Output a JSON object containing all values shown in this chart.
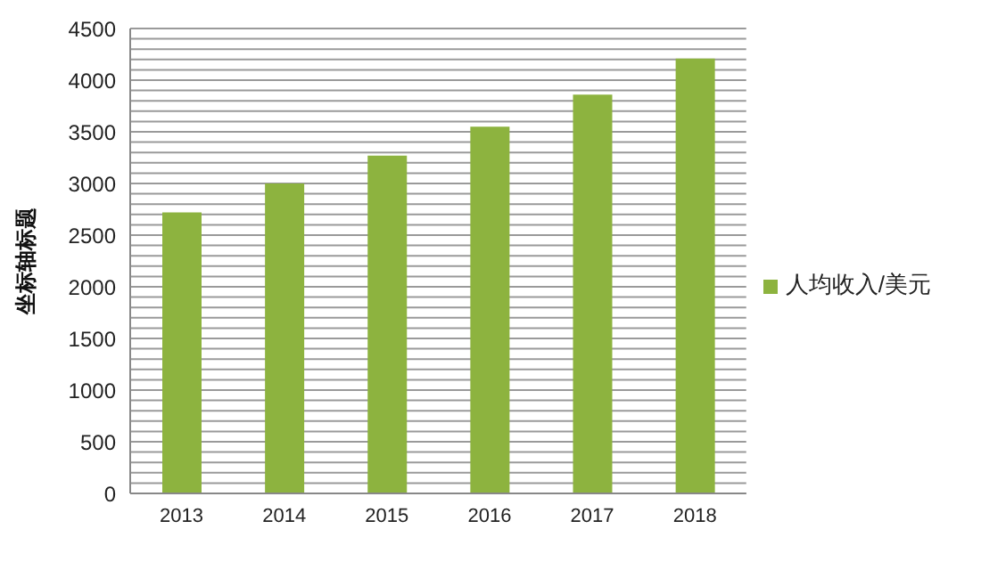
{
  "chart_data": {
    "type": "bar",
    "ylabel": "坐标轴标题",
    "categories": [
      "2013",
      "2014",
      "2015",
      "2016",
      "2017",
      "2018"
    ],
    "series": [
      {
        "name": "人均收入/美元",
        "color": "#8db33f",
        "values": [
          2720,
          3000,
          3270,
          3550,
          3860,
          4210
        ]
      }
    ],
    "ylim": [
      0,
      4500
    ],
    "yticks": [
      0,
      {
        "value": 100,
        "label": null
      },
      {
        "value": 200,
        "label": null
      },
      {
        "value": 300,
        "label": null
      },
      {
        "value": 400,
        "label": null
      },
      500,
      {
        "value": 600,
        "label": null
      },
      {
        "value": 700,
        "label": null
      },
      {
        "value": 800,
        "label": null
      },
      {
        "value": 900,
        "label": null
      },
      1000,
      {
        "value": 1100,
        "label": null
      },
      {
        "value": 1200,
        "label": null
      },
      {
        "value": 1300,
        "label": null
      },
      {
        "value": 1400,
        "label": null
      },
      1500,
      {
        "value": 1600,
        "label": null
      },
      {
        "value": 1700,
        "label": null
      },
      {
        "value": 1800,
        "label": null
      },
      {
        "value": 1900,
        "label": null
      },
      2000,
      {
        "value": 2100,
        "label": null
      },
      {
        "value": 2200,
        "label": null
      },
      {
        "value": 2300,
        "label": null
      },
      {
        "value": 2400,
        "label": null
      },
      2500,
      {
        "value": 2600,
        "label": null
      },
      {
        "value": 2700,
        "label": null
      },
      {
        "value": 2800,
        "label": null
      },
      {
        "value": 2900,
        "label": null
      },
      3000,
      {
        "value": 3100,
        "label": null
      },
      {
        "value": 3200,
        "label": null
      },
      {
        "value": 3300,
        "label": null
      },
      {
        "value": 3400,
        "label": null
      },
      3500,
      {
        "value": 3600,
        "label": null
      },
      {
        "value": 3700,
        "label": null
      },
      {
        "value": 3800,
        "label": null
      },
      {
        "value": 3900,
        "label": null
      },
      4000,
      {
        "value": 4100,
        "label": null
      },
      {
        "value": 4200,
        "label": null
      },
      {
        "value": 4300,
        "label": null
      },
      {
        "value": 4400,
        "label": null
      },
      4500
    ],
    "grid": "y",
    "legend": "right"
  }
}
